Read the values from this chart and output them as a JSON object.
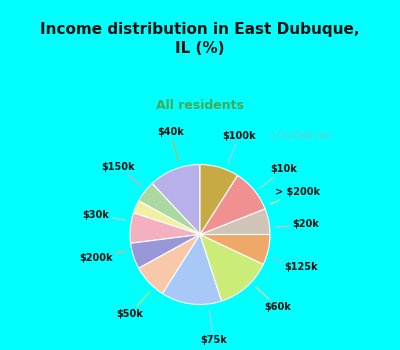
{
  "title": "Income distribution in East Dubuque,\nIL (%)",
  "subtitle": "All residents",
  "title_color": "#111111",
  "subtitle_color": "#44aa55",
  "bg_top": "#00FFFF",
  "bg_chart_color": "#c8ede0",
  "watermark": "ⓘ City-Data.com",
  "labels": [
    "$100k",
    "$10k",
    "> $200k",
    "$20k",
    "$125k",
    "$60k",
    "$75k",
    "$50k",
    "$200k",
    "$30k",
    "$150k",
    "$40k"
  ],
  "values": [
    12,
    5,
    3,
    7,
    6,
    8,
    14,
    13,
    7,
    6,
    10,
    9
  ],
  "colors": [
    "#b8b0e8",
    "#aad8a0",
    "#f0f0a0",
    "#f4b0c0",
    "#9898d8",
    "#f8c8a8",
    "#a8c8f8",
    "#ccec78",
    "#f0a868",
    "#d0c4b8",
    "#f09090",
    "#c8aa44"
  ],
  "line_colors": [
    "#c0c0e8",
    "#b0d8b0",
    "#e8e880",
    "#f0b0c0",
    "#b0b0e0",
    "#f8c8a0",
    "#b0c8e8",
    "#cce870",
    "#f0a870",
    "#d8c8b8",
    "#f8a0a0",
    "#c8b050"
  ],
  "startangle": 90,
  "label_fontsize": 7.0
}
